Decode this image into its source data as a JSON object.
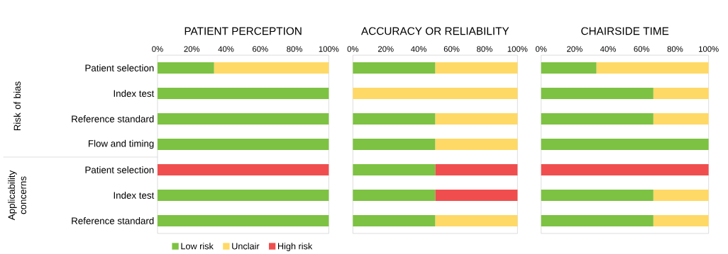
{
  "chart_data": [
    {
      "type": "bar",
      "orientation": "horizontal",
      "stacked": true,
      "title": "PATIENT PERCEPTION",
      "categories": [
        "Patient selection",
        "Index test",
        "Reference standard",
        "Flow and timing",
        "Patient selection",
        "Index test",
        "Reference standard"
      ],
      "series": [
        {
          "name": "Low risk",
          "color": "#7dc242",
          "values": [
            33,
            100,
            100,
            100,
            0,
            100,
            100
          ]
        },
        {
          "name": "Unclair",
          "color": "#ffd966",
          "values": [
            67,
            0,
            0,
            0,
            0,
            0,
            0
          ]
        },
        {
          "name": "High risk",
          "color": "#f04e4e",
          "values": [
            0,
            0,
            0,
            0,
            100,
            0,
            0
          ]
        }
      ],
      "xlim": [
        0,
        100
      ],
      "xticks": [
        {
          "value": 0,
          "label": "0%"
        },
        {
          "value": 20,
          "label": "20%"
        },
        {
          "value": 40,
          "label": "40%"
        },
        {
          "value": 60,
          "label": "60%"
        },
        {
          "value": 80,
          "label": "80%"
        },
        {
          "value": 100,
          "label": "100%"
        }
      ],
      "legend": "bottom",
      "annotations": [
        "Risk of bias",
        "Applicability concerns"
      ]
    },
    {
      "type": "bar",
      "orientation": "horizontal",
      "stacked": true,
      "title": "ACCURACY OR RELIABILITY",
      "categories": [
        null,
        null,
        null,
        null,
        null,
        null,
        null
      ],
      "series": [
        {
          "color": "#7dc242",
          "values": [
            50,
            0,
            50,
            50,
            50,
            50,
            50
          ]
        },
        {
          "color": "#ffd966",
          "values": [
            50,
            100,
            50,
            50,
            0,
            0,
            50
          ]
        },
        {
          "color": "#f04e4e",
          "values": [
            0,
            0,
            0,
            0,
            50,
            50,
            0
          ]
        }
      ],
      "xlim": [
        0,
        100
      ],
      "xticks": [
        {
          "value": 0,
          "label": "0%"
        },
        {
          "value": 20,
          "label": "20%"
        },
        {
          "value": 40,
          "label": "40%"
        },
        {
          "value": 60,
          "label": "60%"
        },
        {
          "value": 80,
          "label": "80%"
        },
        {
          "value": 100,
          "label": "100%"
        }
      ],
      "tick_labels": "x"
    },
    {
      "type": "bar",
      "orientation": "horizontal",
      "stacked": true,
      "title": "CHAIRSIDE TIME",
      "categories": [
        null,
        null,
        null,
        null,
        null,
        null,
        null
      ],
      "series": [
        {
          "color": "#7dc242",
          "values": [
            33,
            67,
            67,
            100,
            0,
            67,
            67
          ]
        },
        {
          "color": "#ffd966",
          "values": [
            67,
            33,
            33,
            0,
            0,
            33,
            33
          ]
        },
        {
          "color": "#f04e4e",
          "values": [
            0,
            0,
            0,
            0,
            100,
            0,
            0
          ]
        }
      ],
      "xlim": [
        0,
        100
      ],
      "xticks": [
        {
          "value": 0,
          "label": "0%"
        },
        {
          "value": 20,
          "label": "20%"
        },
        {
          "value": 40,
          "label": "40%"
        },
        {
          "value": 60,
          "label": "60%"
        },
        {
          "value": 80,
          "label": "80%"
        },
        {
          "value": 100,
          "label": "100%"
        }
      ],
      "tick_labels": "x"
    }
  ]
}
